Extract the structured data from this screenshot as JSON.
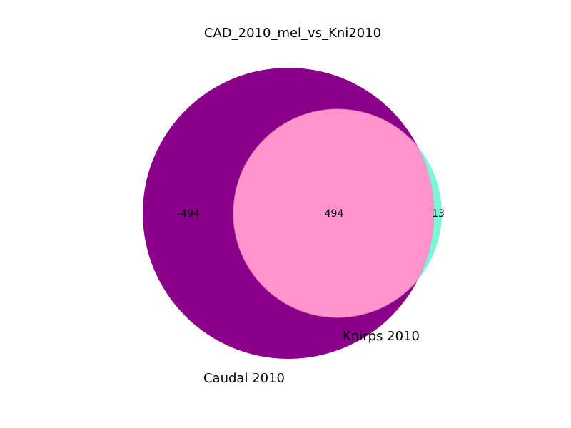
{
  "title": "CAD_2010_mel_vs_Kni2010",
  "sets": [
    {
      "name": "Caudal 2010",
      "color": "#8b0088"
    },
    {
      "name": "Knirps 2010",
      "color": "#7ff5d6"
    }
  ],
  "intersection_color": "#ff94cc",
  "regions": {
    "a_only": "-494",
    "both": "494",
    "b_only": "13"
  }
}
